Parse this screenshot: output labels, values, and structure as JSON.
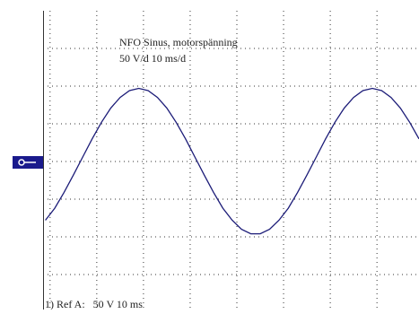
{
  "chart_data": {
    "type": "line",
    "title": "NFO Sinus, motorspänning",
    "subtitle": "50 V/d 10 ms/d",
    "annotation": "1) Ref A:   50 V 10 ms",
    "x": [
      -41,
      -39,
      -37,
      -35,
      -33,
      -31,
      -29,
      -27,
      -25,
      -23,
      -21,
      -19,
      -17,
      -15,
      -13,
      -11,
      -9,
      -7,
      -5,
      -3,
      -1,
      1,
      3,
      5,
      7,
      9,
      11,
      13,
      15,
      17,
      19,
      21,
      23,
      25,
      27,
      29,
      31,
      33,
      35,
      37,
      39
    ],
    "series": [
      {
        "color": "#1c1c78",
        "values": [
          -78,
          -62,
          -41,
          -18,
          6,
          30,
          52,
          71,
          85,
          94,
          97,
          94,
          85,
          71,
          52,
          30,
          6,
          -18,
          -41,
          -62,
          -78,
          -90,
          -96,
          -96,
          -90,
          -78,
          -62,
          -41,
          -18,
          6,
          30,
          52,
          71,
          85,
          94,
          97,
          94,
          85,
          71,
          52,
          30
        ]
      }
    ],
    "xlim": [
      -41.5,
      39
    ],
    "ylim": [
      -200,
      200
    ],
    "xticks": [
      -40,
      -30,
      -20,
      -10,
      0,
      10,
      20,
      30
    ],
    "yticks": [
      -150,
      -100,
      -50,
      0,
      50,
      100,
      150
    ],
    "grid": true
  }
}
